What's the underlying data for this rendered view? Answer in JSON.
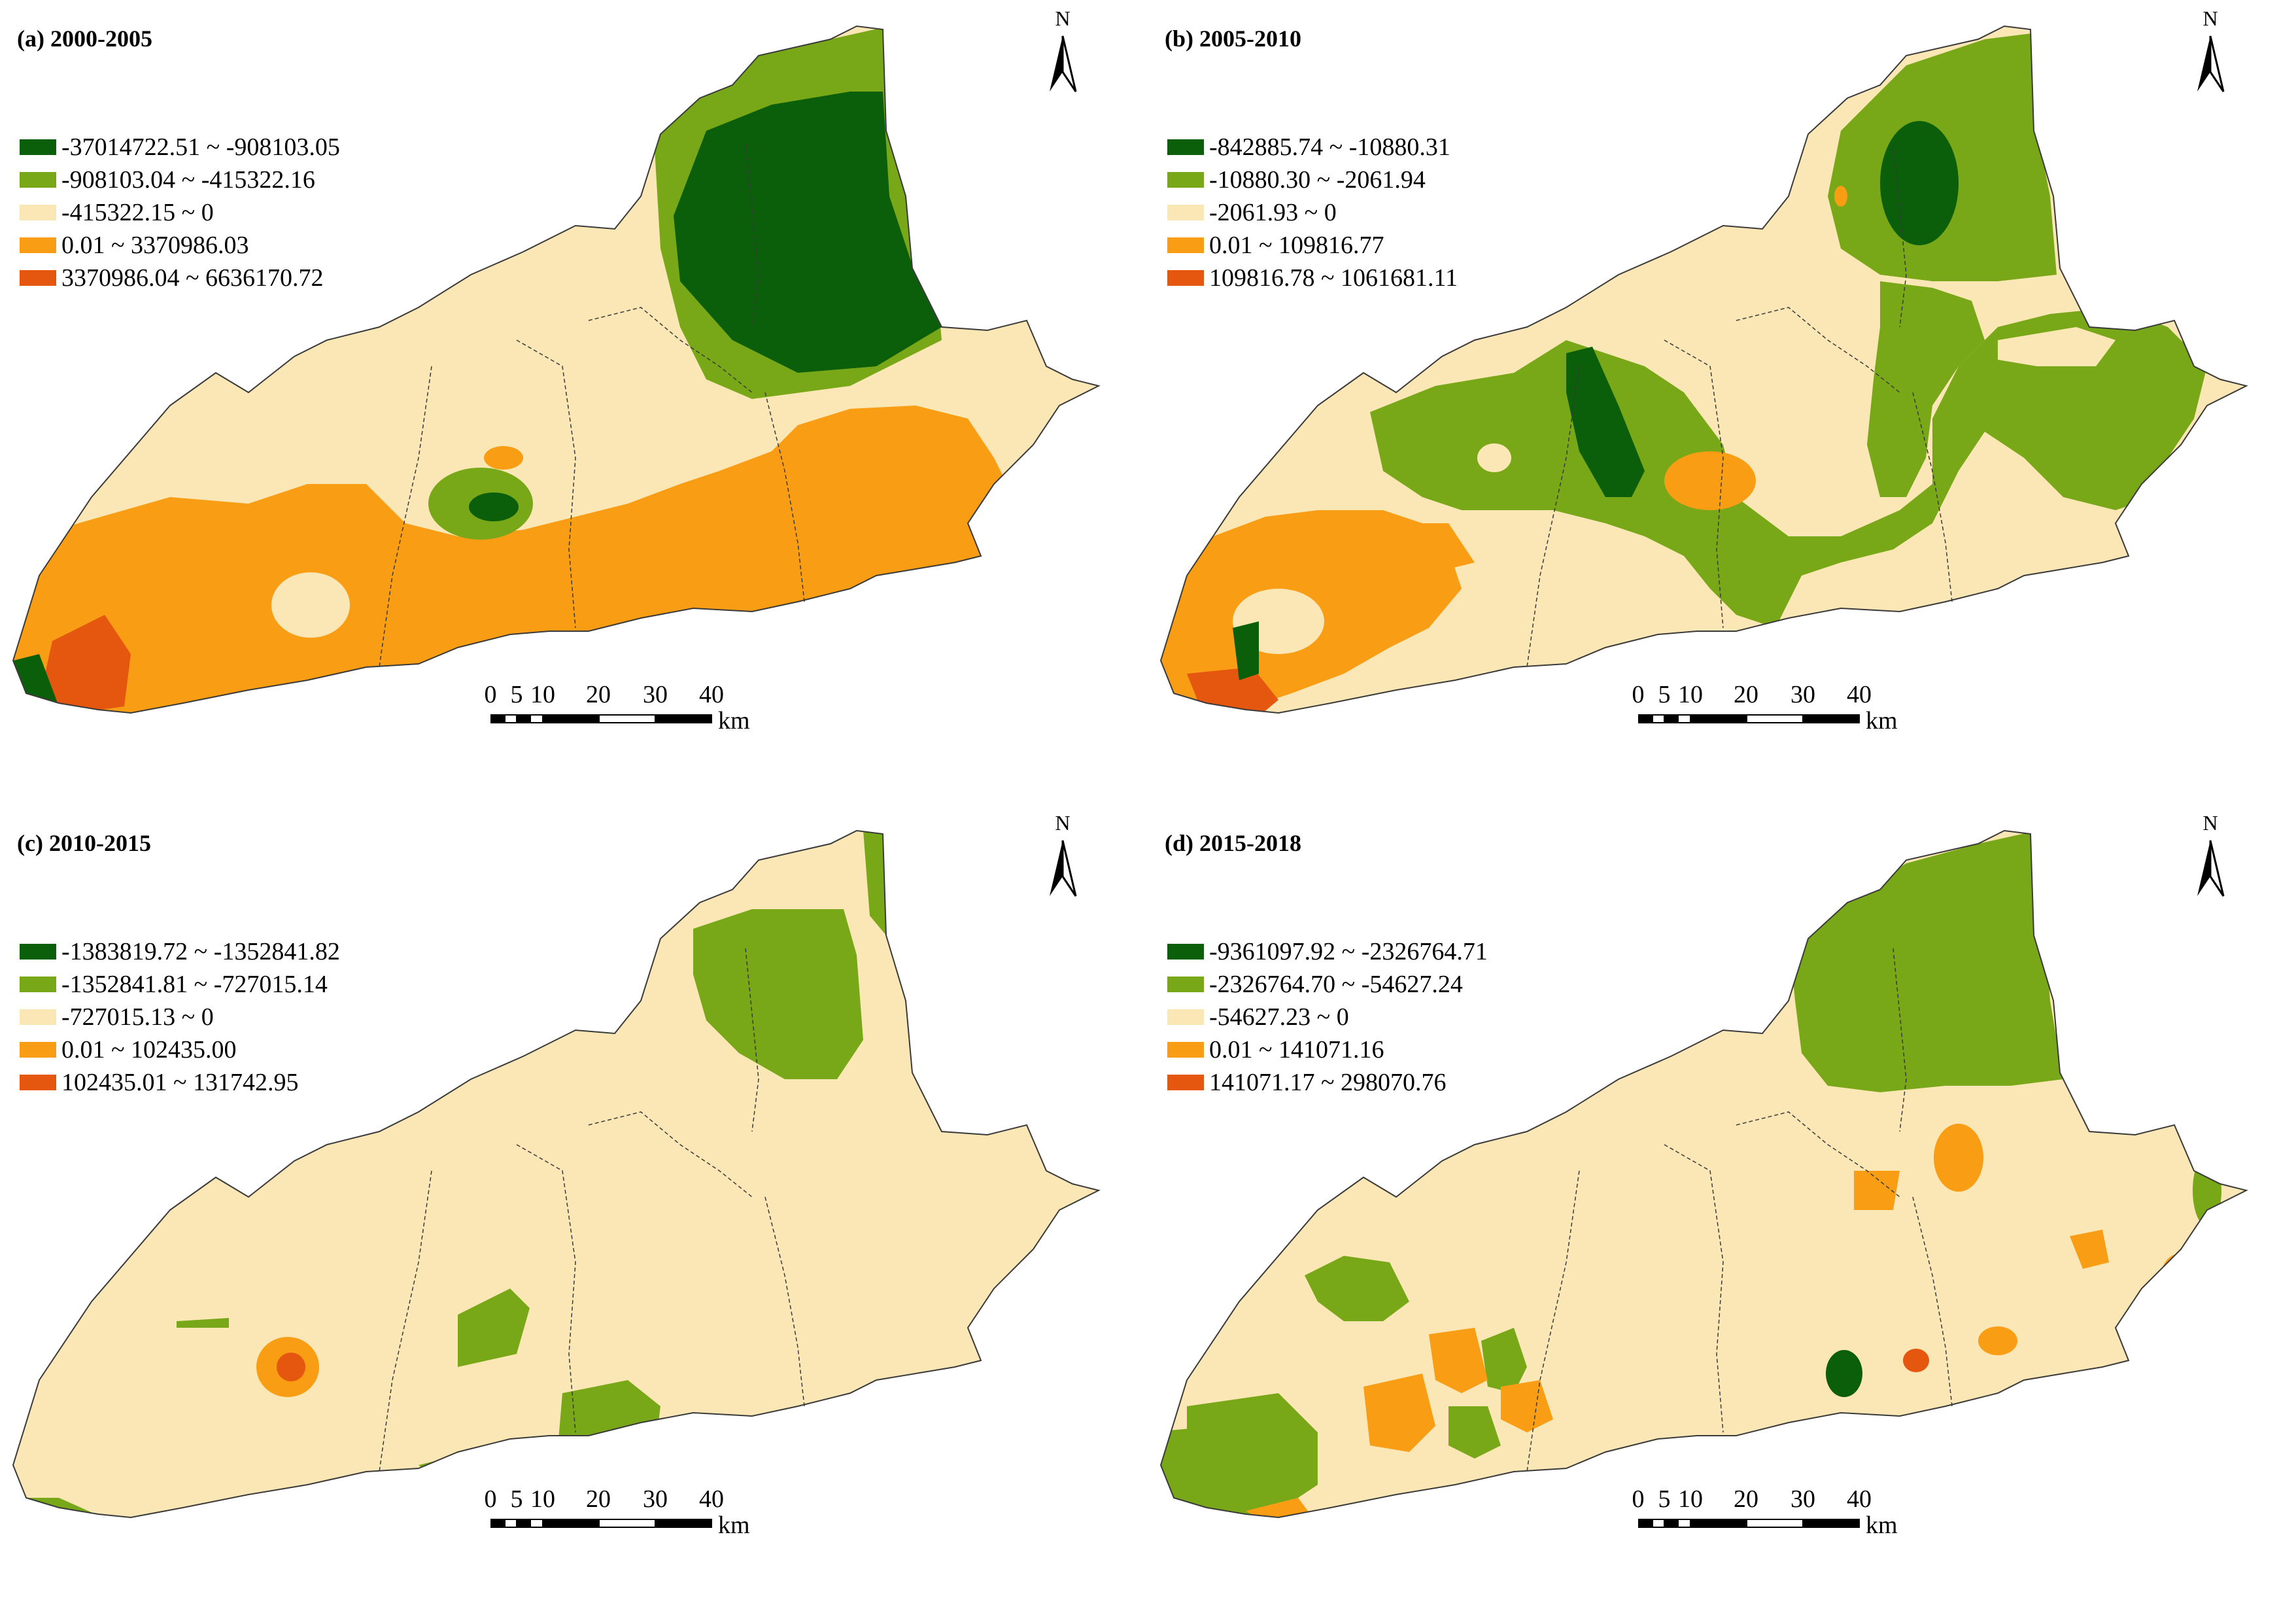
{
  "colors": {
    "c1": "#0b5e0a",
    "c2": "#78a818",
    "c3": "#fbe7b5",
    "c4": "#f99d15",
    "c5": "#e5560f",
    "boundary": "#3a3a3a"
  },
  "north_label": "N",
  "scale": {
    "ticks": [
      "0",
      "5",
      "10",
      "20",
      "30",
      "40"
    ],
    "unit": "km"
  },
  "panels": [
    {
      "title": "(a) 2000-2005",
      "legend": [
        {
          "label": "-37014722.51 ~ -908103.05",
          "color": "#0b5e0a"
        },
        {
          "label": "-908103.04 ~ -415322.16",
          "color": "#78a818"
        },
        {
          "label": "-415322.15 ~ 0",
          "color": "#fbe7b5"
        },
        {
          "label": "0.01 ~ 3370986.03",
          "color": "#f99d15"
        },
        {
          "label": "3370986.04 ~ 6636170.72",
          "color": "#e5560f"
        }
      ]
    },
    {
      "title": "(b) 2005-2010",
      "legend": [
        {
          "label": "-842885.74 ~ -10880.31",
          "color": "#0b5e0a"
        },
        {
          "label": "-10880.30 ~ -2061.94",
          "color": "#78a818"
        },
        {
          "label": "-2061.93 ~ 0",
          "color": "#fbe7b5"
        },
        {
          "label": "0.01 ~ 109816.77",
          "color": "#f99d15"
        },
        {
          "label": "109816.78 ~ 1061681.11",
          "color": "#e5560f"
        }
      ]
    },
    {
      "title": "(c) 2010-2015",
      "legend": [
        {
          "label": "-1383819.72 ~ -1352841.82",
          "color": "#0b5e0a"
        },
        {
          "label": "-1352841.81 ~ -727015.14",
          "color": "#78a818"
        },
        {
          "label": "-727015.13 ~ 0",
          "color": "#fbe7b5"
        },
        {
          "label": "0.01 ~ 102435.00",
          "color": "#f99d15"
        },
        {
          "label": "102435.01 ~ 131742.95",
          "color": "#e5560f"
        }
      ]
    },
    {
      "title": "(d) 2015-2018",
      "legend": [
        {
          "label": "-9361097.92 ~ -2326764.71",
          "color": "#0b5e0a"
        },
        {
          "label": "-2326764.70 ~ -54627.24",
          "color": "#78a818"
        },
        {
          "label": "-54627.23 ~ 0",
          "color": "#fbe7b5"
        },
        {
          "label": "0.01 ~ 141071.16",
          "color": "#f99d15"
        },
        {
          "label": "141071.17 ~ 298070.76",
          "color": "#e5560f"
        }
      ]
    }
  ]
}
